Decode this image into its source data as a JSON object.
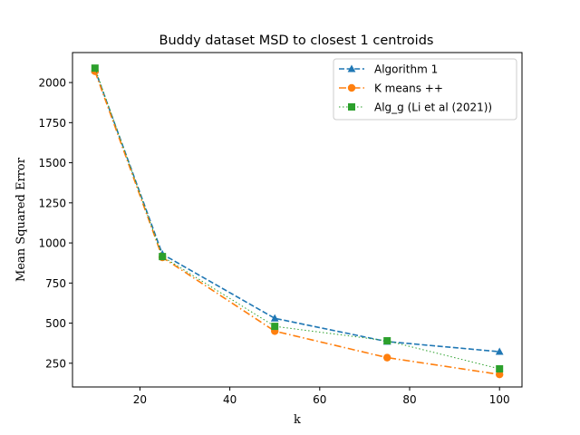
{
  "chart_data": {
    "type": "line",
    "title": "Buddy dataset MSD to closest 1 centroids",
    "xlabel": "k",
    "ylabel": "Mean Squared Error",
    "xlim": [
      5,
      105
    ],
    "ylim": [
      102,
      2187
    ],
    "xticks": [
      20,
      40,
      60,
      80,
      100
    ],
    "yticks": [
      250,
      500,
      750,
      1000,
      1250,
      1500,
      1750,
      2000
    ],
    "legend_position": "top-right",
    "grid": false,
    "x": [
      10,
      25,
      50,
      75,
      100
    ],
    "series": [
      {
        "name": "Algorithm 1",
        "values": [
          2080,
          930,
          530,
          385,
          322
        ],
        "color": "#1f77b4",
        "marker": "triangle",
        "line_style": "dashed"
      },
      {
        "name": "K means ++",
        "values": [
          2070,
          910,
          450,
          285,
          180
        ],
        "color": "#ff7f0e",
        "marker": "circle",
        "line_style": "dashdot"
      },
      {
        "name": "Alg_g (Li et al (2021))",
        "values": [
          2090,
          915,
          480,
          390,
          215
        ],
        "color": "#2ca02c",
        "marker": "square",
        "line_style": "dotted"
      }
    ]
  }
}
